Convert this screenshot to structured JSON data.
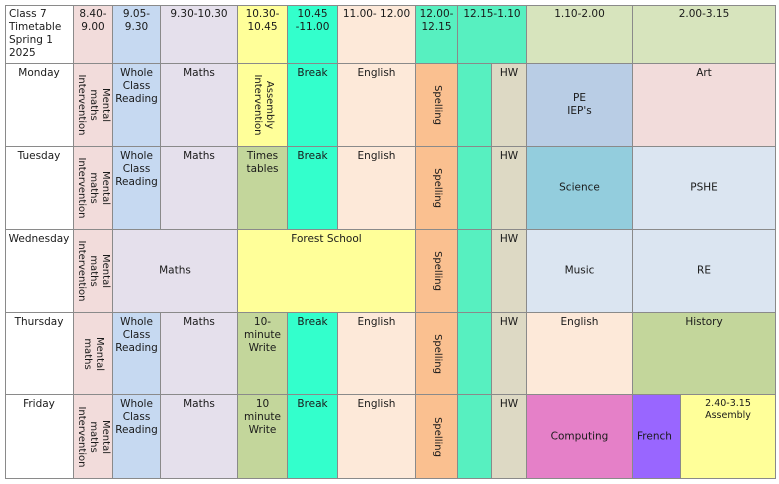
{
  "header": {
    "title": "Class 7\nTimetable\nSpring 1\n2025",
    "slots": [
      "8.40-\n9.00",
      "9.05-\n9.30",
      "9.30-10.30",
      "10.30-\n10.45",
      "10.45\n-11.00",
      "11.00- 12.00",
      "12.00-\n12.15",
      "12.15-1.10",
      "1.10-2.00",
      "2.00-3.15"
    ]
  },
  "days": [
    "Monday",
    "Tuesday",
    "Wednesday",
    "Thursday",
    "Friday"
  ],
  "lessons": {
    "mental_intervention": "Mental maths\nIntervention",
    "mental": "Mental maths",
    "wcr": "Whole\nClass\nReading",
    "maths": "Maths",
    "assembly_intervention": "Assembly\nIntervention",
    "times_tables": "Times\ntables",
    "ten_min_write_thu": "10-\nminute\nWrite",
    "ten_min_write_fri": "10\nminute\nWrite",
    "break": "Break",
    "english": "English",
    "forest_school": "Forest School",
    "spelling": "Spelling",
    "hw": "HW",
    "pe": "PE\nIEP's",
    "art": "Art",
    "science": "Science",
    "pshe": "PSHE",
    "music": "Music",
    "re": "RE",
    "history": "History",
    "computing": "Computing",
    "french": "French",
    "assembly_fri": "2.40-3.15\nAssembly"
  },
  "colors": {
    "pink": "#f2dcdb",
    "blue": "#c6d9f1",
    "lavender": "#e5e0ec",
    "yellow": "#ffff99",
    "aqua": "#33ffcc",
    "peach": "#fde9d9",
    "orange": "#fac090",
    "mint": "#57f0c0",
    "grey": "#ddd9c4",
    "olive": "#d7e4bd",
    "steel": "#b9cde5",
    "rose": "#f2dcdb",
    "sky": "#93cddd",
    "paleblue": "#dbe5f1",
    "green": "#c3d69b",
    "magenta": "#e580c8",
    "purple": "#9966ff"
  }
}
